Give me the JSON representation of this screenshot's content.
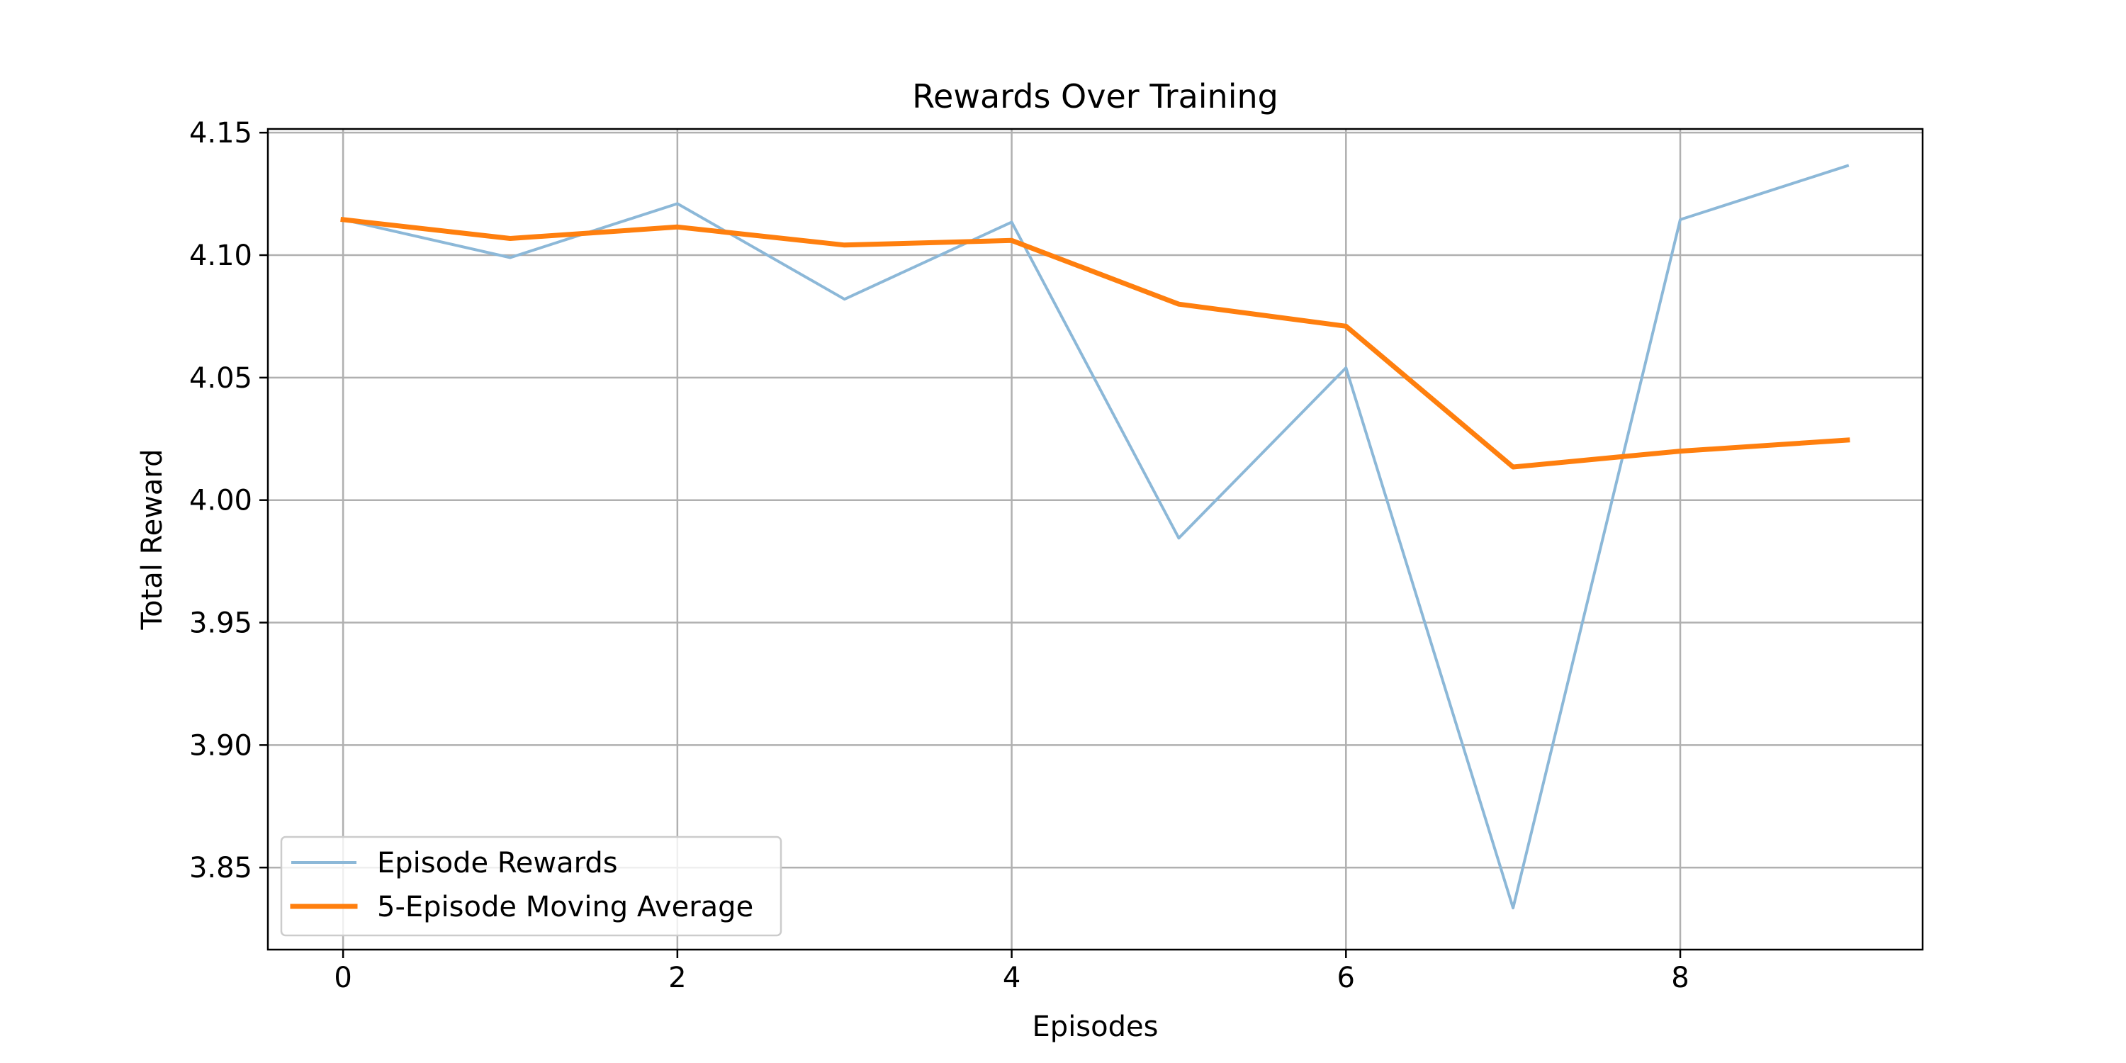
{
  "chart_data": {
    "type": "line",
    "title": "Rewards Over Training",
    "xlabel": "Episodes",
    "ylabel": "Total Reward",
    "xlim": [
      -0.45,
      9.45
    ],
    "ylim": [
      3.8165,
      4.1515
    ],
    "xticks": [
      0,
      2,
      4,
      6,
      8
    ],
    "yticks": [
      3.85,
      3.9,
      3.95,
      4.0,
      4.05,
      4.1,
      4.15
    ],
    "ytick_labels": [
      "3.85",
      "3.90",
      "3.95",
      "4.00",
      "4.05",
      "4.10",
      "4.15"
    ],
    "grid": true,
    "legend_position": "lower-left",
    "x": [
      0,
      1,
      2,
      3,
      4,
      5,
      6,
      7,
      8,
      9
    ],
    "series": [
      {
        "name": "Episode Rewards",
        "color": "#8cb8d8",
        "values": [
          4.1145,
          4.099,
          4.121,
          4.082,
          4.1135,
          3.9845,
          4.054,
          3.8335,
          4.1145,
          4.1365
        ]
      },
      {
        "name": "5-Episode Moving Average",
        "color": "#ff7f0e",
        "values": [
          4.1145,
          4.1068,
          4.1115,
          4.1041,
          4.106,
          4.08,
          4.071,
          4.0135,
          4.02,
          4.0245
        ]
      }
    ]
  }
}
